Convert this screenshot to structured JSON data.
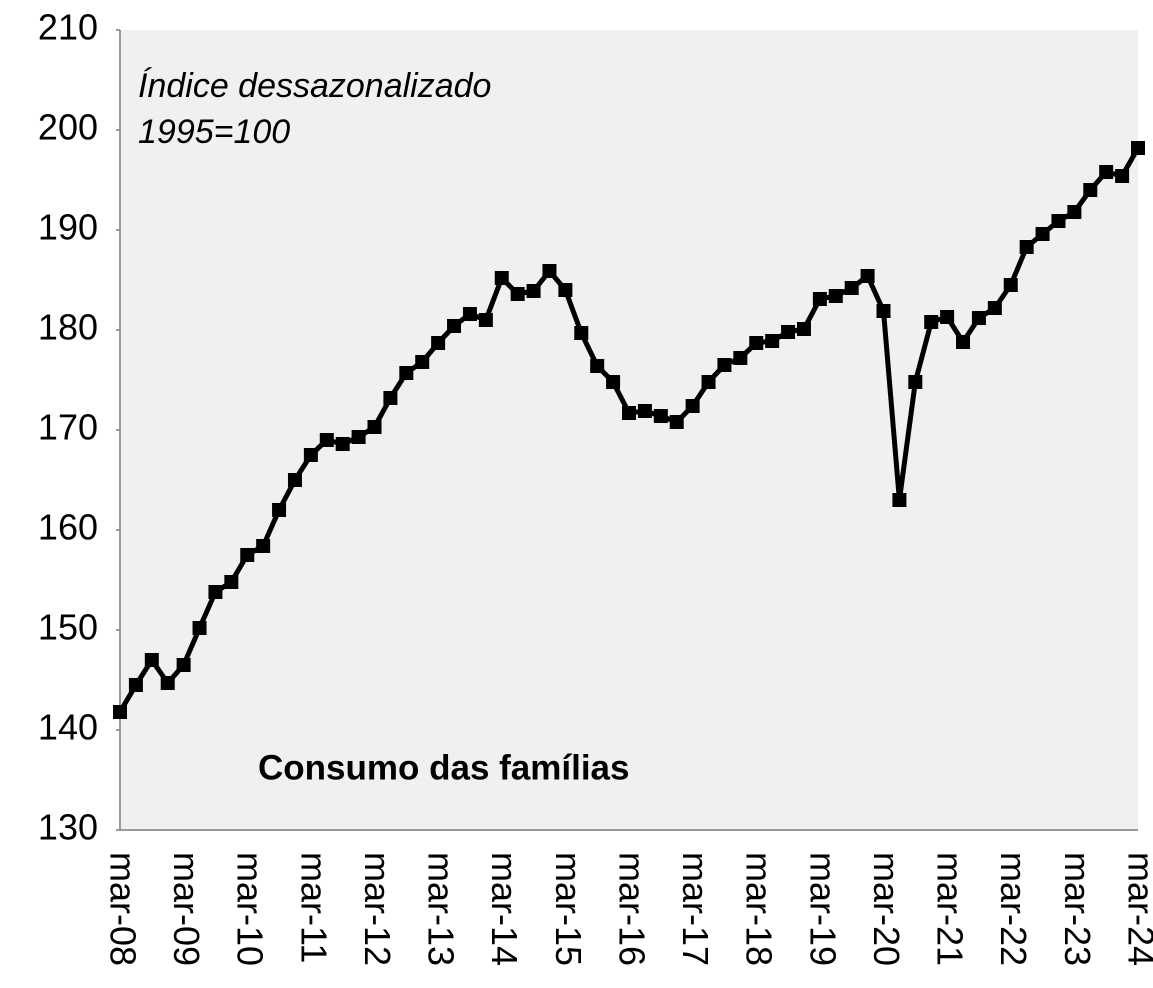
{
  "chart_data": {
    "type": "line",
    "annotations": [
      "Índice dessazonalizado",
      "1995=100",
      "Consumo das famílias"
    ],
    "categories": [
      "mar-08",
      null,
      null,
      null,
      "mar-09",
      null,
      null,
      null,
      "mar-10",
      null,
      null,
      null,
      "mar-11",
      null,
      null,
      null,
      "mar-12",
      null,
      null,
      null,
      "mar-13",
      null,
      null,
      null,
      "mar-14",
      null,
      null,
      null,
      "mar-15",
      null,
      null,
      null,
      "mar-16",
      null,
      null,
      null,
      "mar-17",
      null,
      null,
      null,
      "mar-18",
      null,
      null,
      null,
      "mar-19",
      null,
      null,
      null,
      "mar-20",
      null,
      null,
      null,
      "mar-21",
      null,
      null,
      null,
      "mar-22",
      null,
      null,
      null,
      "mar-23",
      null,
      null,
      null,
      "mar-24"
    ],
    "series": [
      {
        "name": "Consumo das famílias",
        "color": "#000000",
        "values": [
          141.8,
          144.5,
          147.0,
          144.7,
          146.5,
          150.2,
          153.8,
          154.8,
          157.5,
          158.4,
          162.0,
          165.0,
          167.5,
          169.0,
          168.6,
          169.3,
          170.3,
          173.2,
          175.7,
          176.8,
          178.7,
          180.4,
          181.6,
          181.0,
          185.2,
          183.6,
          183.9,
          185.9,
          184.0,
          179.7,
          176.4,
          174.8,
          171.7,
          171.9,
          171.4,
          170.8,
          172.4,
          174.8,
          176.5,
          177.2,
          178.7,
          178.9,
          179.8,
          180.1,
          183.1,
          183.4,
          184.2,
          185.4,
          181.9,
          163.0,
          174.8,
          180.8,
          181.3,
          178.8,
          181.2,
          182.2,
          184.5,
          188.3,
          189.6,
          190.9,
          191.8,
          194.0,
          195.8,
          195.4,
          198.2
        ]
      }
    ],
    "ylim": [
      130,
      210
    ],
    "yticks": [
      130,
      140,
      150,
      160,
      170,
      180,
      190,
      200,
      210
    ],
    "grid": false
  }
}
